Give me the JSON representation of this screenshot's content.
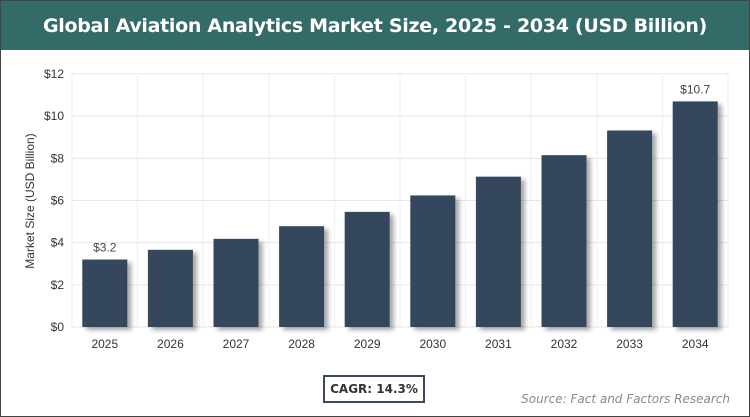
{
  "title": "Global Aviation Analytics Market Size, 2025 - 2034 (USD Billion)",
  "cagr_label": "CAGR: 14.3%",
  "source": "Source: Fact and Factors Research",
  "colors": {
    "header": "#336b68",
    "bar": "#36475c"
  },
  "chart_data": {
    "type": "bar",
    "title": "Global Aviation Analytics Market Size, 2025 - 2034 (USD Billion)",
    "xlabel": "",
    "ylabel": "Market Size (USD Billion)",
    "categories": [
      "2025",
      "2026",
      "2027",
      "2028",
      "2029",
      "2030",
      "2031",
      "2032",
      "2033",
      "2034"
    ],
    "values": [
      3.2,
      3.66,
      4.18,
      4.78,
      5.46,
      6.24,
      7.13,
      8.15,
      9.32,
      10.7
    ],
    "data_labels": {
      "0": "$3.2",
      "9": "$10.7"
    },
    "ylim": [
      0,
      12
    ],
    "yticks": [
      0,
      2,
      4,
      6,
      8,
      10,
      12
    ],
    "ytick_labels": [
      "$0",
      "$2",
      "$4",
      "$6",
      "$8",
      "$10",
      "$12"
    ],
    "grid": true,
    "legend": "none"
  }
}
